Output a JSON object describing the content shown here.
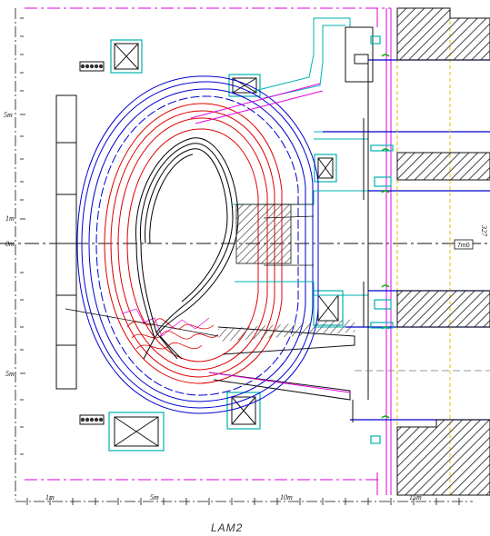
{
  "drawing": {
    "title": "LAM2",
    "vertical_scale_labels": [
      "5m",
      "1m",
      "0m",
      "5m"
    ],
    "horizontal_scale_labels": [
      "1m",
      "5m",
      "10m",
      "15m"
    ],
    "right_dimension": "327",
    "right_tag": "7m0"
  },
  "colors": {
    "blanket": "#e00000",
    "vessel": "#0000d0",
    "cryostat": "#e000e0",
    "port_cyan": "#00b0b0",
    "green_seal": "#00b000",
    "plasma": "#000000",
    "building_hatch": "#555555",
    "yellow_guide": "#e0c000"
  }
}
